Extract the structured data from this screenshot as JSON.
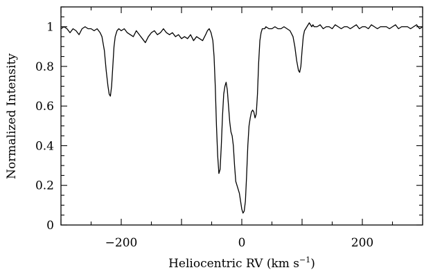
{
  "chart_data": {
    "type": "line",
    "title": "",
    "xlabel": "Heliocentric RV (km s",
    "xlabel_unit_sup": "−1",
    "xlabel_close": ")",
    "ylabel": "Normalized Intensity",
    "xlim": [
      -300,
      300
    ],
    "ylim": [
      0,
      1.1
    ],
    "x_major_ticks": [
      -200,
      0,
      200
    ],
    "x_tick_labels": [
      "−200",
      "0",
      "200"
    ],
    "y_major_ticks": [
      0,
      0.2,
      0.4,
      0.6,
      0.8,
      1
    ],
    "y_tick_labels": [
      "0",
      "0.2",
      "0.4",
      "0.6",
      "0.8",
      "1"
    ],
    "grid": false,
    "series": [
      {
        "x": [
          -300,
          -295,
          -290,
          -285,
          -280,
          -275,
          -270,
          -265,
          -260,
          -255,
          -250,
          -245,
          -240,
          -235,
          -232,
          -228,
          -225,
          -222,
          -220,
          -218,
          -216,
          -214,
          -212,
          -210,
          -207,
          -204,
          -200,
          -195,
          -190,
          -185,
          -180,
          -175,
          -170,
          -165,
          -160,
          -155,
          -150,
          -145,
          -140,
          -135,
          -130,
          -125,
          -120,
          -115,
          -110,
          -105,
          -100,
          -95,
          -90,
          -85,
          -80,
          -75,
          -70,
          -65,
          -60,
          -57,
          -54,
          -51,
          -48,
          -46,
          -44,
          -42,
          -40,
          -38,
          -36,
          -34,
          -32,
          -30,
          -28,
          -26,
          -24,
          -22,
          -20,
          -18,
          -16,
          -14,
          -12,
          -10,
          -8,
          -6,
          -4,
          -2,
          0,
          2,
          4,
          6,
          8,
          10,
          12,
          14,
          16,
          18,
          20,
          22,
          24,
          26,
          28,
          30,
          32,
          34,
          36,
          38,
          40,
          45,
          50,
          55,
          60,
          65,
          70,
          75,
          80,
          85,
          88,
          91,
          94,
          96,
          98,
          100,
          102,
          104,
          106,
          108,
          110,
          112,
          114,
          116,
          118,
          120,
          125,
          130,
          135,
          140,
          145,
          150,
          155,
          160,
          165,
          170,
          175,
          180,
          185,
          190,
          195,
          200,
          205,
          210,
          215,
          220,
          225,
          230,
          235,
          240,
          245,
          250,
          255,
          260,
          265,
          270,
          275,
          280,
          285,
          290,
          295,
          300
        ],
        "y": [
          0.99,
          1.0,
          0.99,
          0.97,
          0.99,
          0.98,
          0.96,
          0.99,
          1.0,
          0.99,
          0.99,
          0.98,
          0.99,
          0.97,
          0.95,
          0.88,
          0.78,
          0.7,
          0.66,
          0.65,
          0.7,
          0.8,
          0.9,
          0.95,
          0.98,
          0.99,
          0.98,
          0.99,
          0.97,
          0.96,
          0.95,
          0.98,
          0.96,
          0.94,
          0.92,
          0.95,
          0.97,
          0.98,
          0.96,
          0.97,
          0.99,
          0.97,
          0.96,
          0.97,
          0.95,
          0.96,
          0.94,
          0.95,
          0.94,
          0.96,
          0.93,
          0.95,
          0.94,
          0.93,
          0.96,
          0.98,
          0.99,
          0.97,
          0.93,
          0.85,
          0.7,
          0.5,
          0.35,
          0.26,
          0.28,
          0.4,
          0.55,
          0.66,
          0.7,
          0.72,
          0.68,
          0.6,
          0.52,
          0.47,
          0.45,
          0.4,
          0.3,
          0.22,
          0.2,
          0.18,
          0.16,
          0.12,
          0.08,
          0.06,
          0.07,
          0.12,
          0.25,
          0.4,
          0.5,
          0.54,
          0.57,
          0.58,
          0.57,
          0.54,
          0.56,
          0.66,
          0.82,
          0.93,
          0.97,
          0.99,
          0.99,
          0.99,
          1.0,
          0.99,
          0.99,
          1.0,
          0.99,
          0.99,
          1.0,
          0.99,
          0.98,
          0.95,
          0.9,
          0.83,
          0.78,
          0.77,
          0.8,
          0.88,
          0.95,
          0.98,
          0.99,
          1.0,
          1.01,
          1.02,
          1.01,
          1.0,
          1.01,
          1.0,
          1.0,
          1.01,
          0.99,
          1.0,
          1.0,
          0.99,
          1.01,
          1.0,
          0.99,
          1.0,
          1.0,
          0.99,
          1.0,
          1.01,
          0.99,
          1.0,
          1.0,
          0.99,
          1.01,
          1.0,
          0.99,
          1.0,
          1.0,
          1.0,
          0.99,
          1.0,
          1.01,
          0.99,
          1.0,
          1.0,
          1.0,
          0.99,
          1.0,
          1.01,
          0.99,
          1.0
        ]
      }
    ]
  }
}
